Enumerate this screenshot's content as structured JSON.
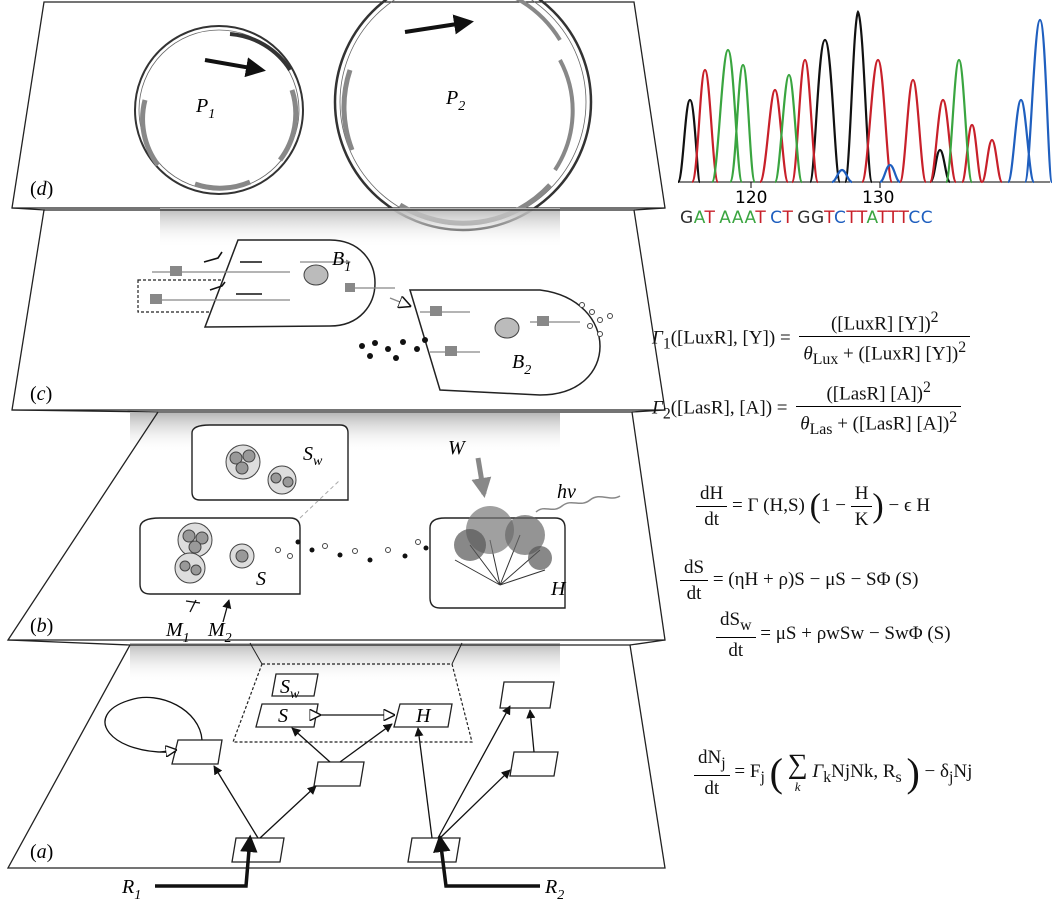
{
  "panels": {
    "a": "(a)",
    "b": "(b)",
    "c": "(c)",
    "d": "(d)"
  },
  "labels": {
    "P1": "P",
    "P1sub": "1",
    "P2": "P",
    "P2sub": "2",
    "B1": "B",
    "B1sub": "1",
    "B2": "B",
    "B2sub": "2",
    "Sw": "S",
    "Swsub": "w",
    "S_b": "S",
    "H_b": "H",
    "W": "W",
    "hv": "hν",
    "M1": "M",
    "M1sub": "1",
    "M2": "M",
    "M2sub": "2",
    "net_Sw": "S",
    "net_Swsub": "w",
    "net_S": "S",
    "net_H": "H",
    "R1": "R",
    "R1sub": "1",
    "R2": "R",
    "R2sub": "2"
  },
  "chromatogram": {
    "tick_120": "120",
    "tick_130": "130",
    "sequence": [
      {
        "b": "G",
        "c": "#2e2e2e"
      },
      {
        "b": "A",
        "c": "#3aa540"
      },
      {
        "b": "T",
        "c": "#c8202a"
      },
      {
        "b": " ",
        "c": "#000"
      },
      {
        "b": "A",
        "c": "#3aa540"
      },
      {
        "b": "A",
        "c": "#3aa540"
      },
      {
        "b": "A",
        "c": "#3aa540"
      },
      {
        "b": "T",
        "c": "#c8202a"
      },
      {
        "b": " ",
        "c": "#000"
      },
      {
        "b": "C",
        "c": "#1f5fbf"
      },
      {
        "b": "T",
        "c": "#c8202a"
      },
      {
        "b": " ",
        "c": "#000"
      },
      {
        "b": "G",
        "c": "#2e2e2e"
      },
      {
        "b": "G",
        "c": "#2e2e2e"
      },
      {
        "b": "T",
        "c": "#c8202a"
      },
      {
        "b": "C",
        "c": "#1f5fbf"
      },
      {
        "b": "T",
        "c": "#c8202a"
      },
      {
        "b": "T",
        "c": "#c8202a"
      },
      {
        "b": "A",
        "c": "#3aa540"
      },
      {
        "b": "T",
        "c": "#c8202a"
      },
      {
        "b": "T",
        "c": "#c8202a"
      },
      {
        "b": "T",
        "c": "#c8202a"
      },
      {
        "b": "C",
        "c": "#1f5fbf"
      },
      {
        "b": "C",
        "c": "#1f5fbf"
      }
    ]
  },
  "equations": {
    "gamma1": {
      "lhs": "Γ",
      "lhs_sub": "1",
      "args": "([LuxR], [Y]) =",
      "num": "([LuxR] [Y])",
      "num_sup": "2",
      "den_theta": "θ",
      "den_sub": "Lux",
      "den_rest": " + ([LuxR] [Y])",
      "den_sup": "2"
    },
    "gamma2": {
      "lhs": "Γ",
      "lhs_sub": "2",
      "args": "([LasR], [A]) =",
      "num": "([LasR] [A])",
      "num_sup": "2",
      "den_theta": "θ",
      "den_sub": "Las",
      "den_rest": " + ([LasR] [A])",
      "den_sup": "2"
    },
    "dH": {
      "num": "dH",
      "den": "dt",
      "rhs1": "= Γ (H,S)",
      "inner_num": "H",
      "inner_den": "K",
      "rhs2": "− ϵ H",
      "one": "1 −"
    },
    "dS": {
      "num": "dS",
      "den": "dt",
      "rhs": "= (ηH + ρ)S − μS − SΦ (S)"
    },
    "dSw": {
      "num": "dS",
      "num_sub": "w",
      "den": "dt",
      "rhs": "= μS + ρwSw − SwΦ (S)"
    },
    "dN": {
      "num": "dN",
      "num_sub": "j",
      "den": "dt",
      "F": "= F",
      "F_sub": "j",
      "sum": "∑",
      "sum_sub": "k",
      "inner": "Γ",
      "inner_sub": "k",
      "inner_rest": "NjNk, R",
      "R_sub": "s",
      "tail": "− δ",
      "tail_sub": "j",
      "tail_rest": "Nj"
    }
  }
}
